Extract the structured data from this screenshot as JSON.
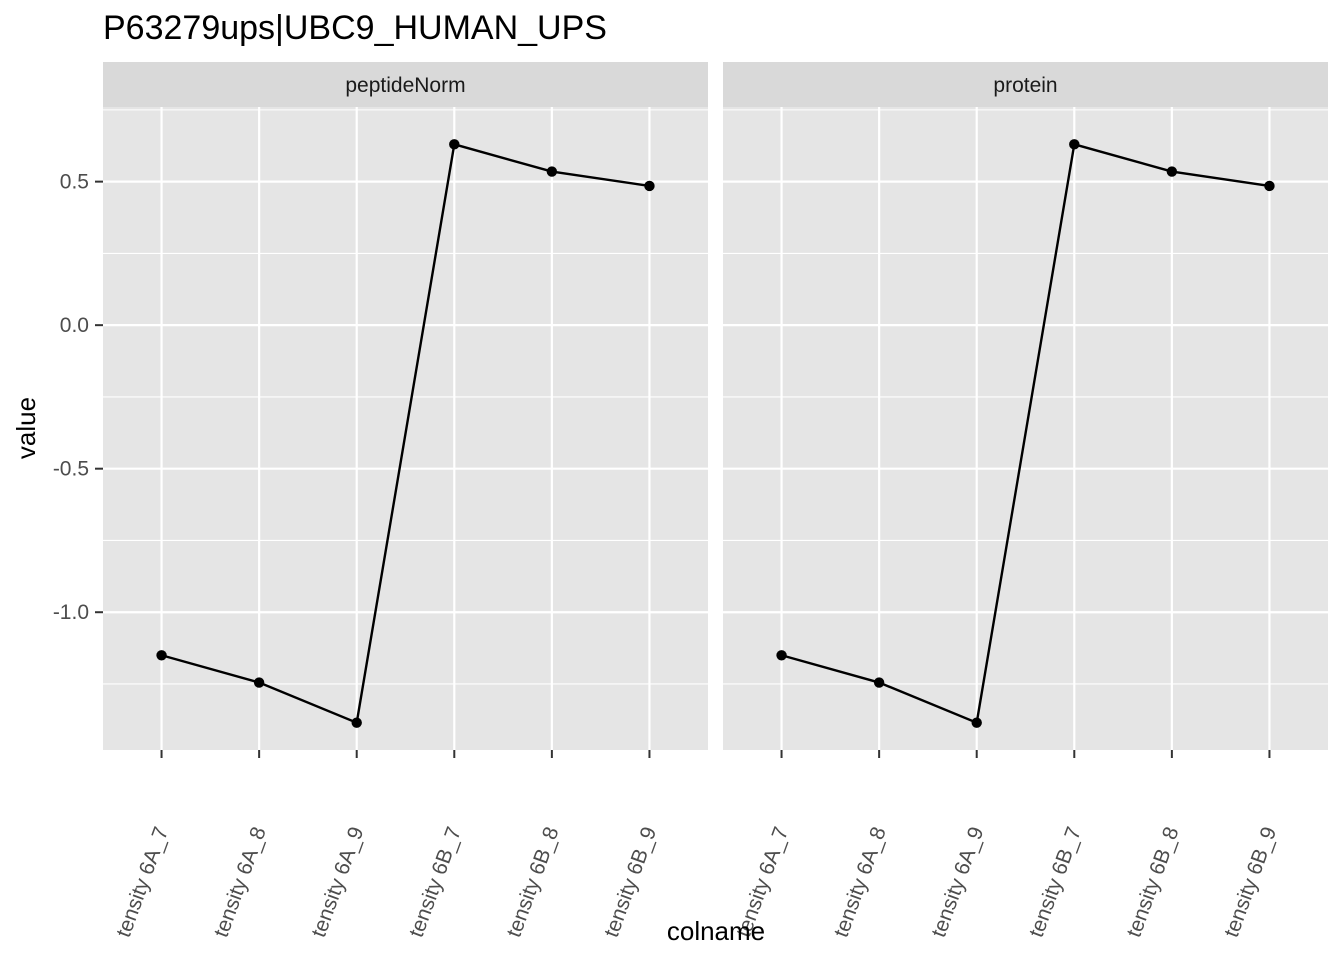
{
  "chart_data": {
    "type": "line",
    "title": "P63279ups|UBC9_HUMAN_UPS",
    "xlabel": "colname",
    "ylabel": "value",
    "categories": [
      "tensity 6A_7",
      "tensity 6A_8",
      "tensity 6A_9",
      "tensity 6B_7",
      "tensity 6B_8",
      "tensity 6B_9"
    ],
    "ylim": [
      -1.48,
      0.76
    ],
    "yticks": [
      {
        "value": 0.5,
        "label": "0.5"
      },
      {
        "value": 0.0,
        "label": "0.0"
      },
      {
        "value": -0.5,
        "label": "-0.5"
      },
      {
        "value": -1.0,
        "label": "-1.0"
      }
    ],
    "grid": true,
    "panels": [
      {
        "strip_label": "peptideNorm",
        "series": [
          {
            "values": [
              -1.15,
              -1.245,
              -1.385,
              0.63,
              0.535,
              0.485
            ]
          }
        ]
      },
      {
        "strip_label": "protein",
        "series": [
          {
            "values": [
              -1.15,
              -1.245,
              -1.385,
              0.63,
              0.535,
              0.485
            ]
          }
        ]
      }
    ],
    "colors": {
      "panel_bg": "#e5e5e5",
      "strip_bg": "#d9d9d9",
      "grid": "#ffffff",
      "line": "#000000",
      "text": "#4d4d4d"
    }
  }
}
